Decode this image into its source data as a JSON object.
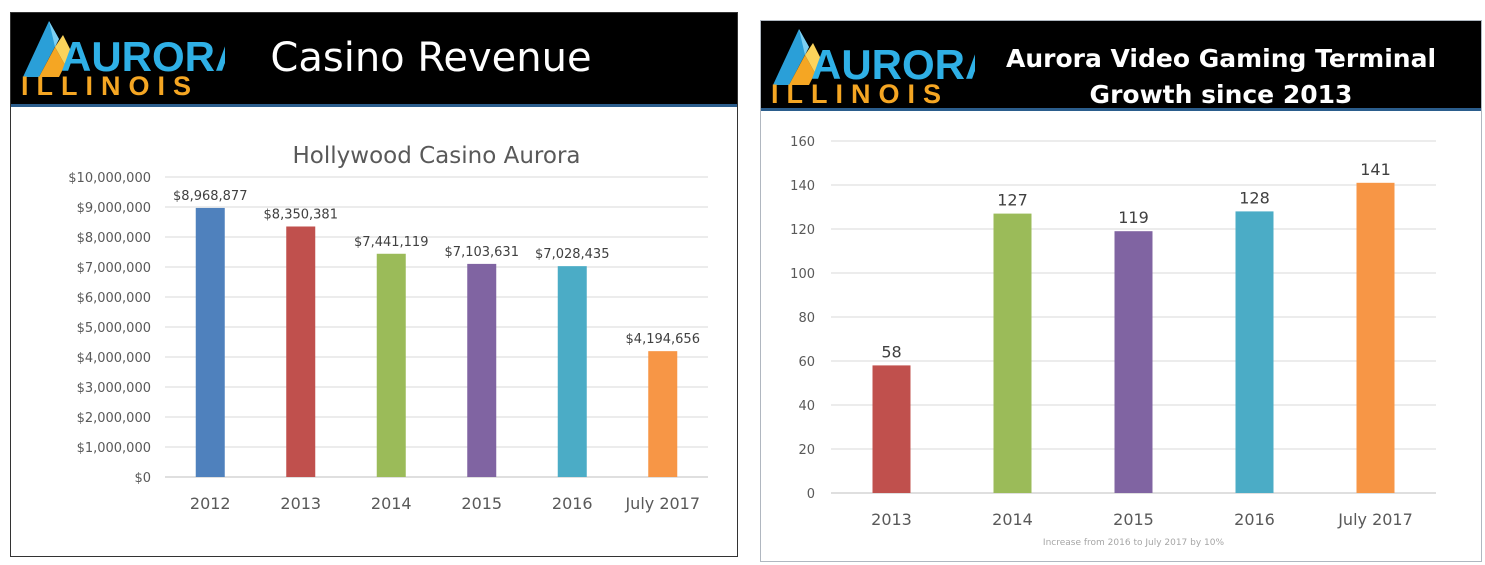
{
  "logo": {
    "line1": "AURORA",
    "line2": "ILLINOIS"
  },
  "panels": [
    {
      "header_title": "Casino Revenue",
      "chart_data": {
        "type": "bar",
        "title": "Hollywood Casino Aurora",
        "categories": [
          "2012",
          "2013",
          "2014",
          "2015",
          "2016",
          "July 2017"
        ],
        "values": [
          8968877,
          8350381,
          7441119,
          7103631,
          7028435,
          4194656
        ],
        "data_labels": [
          "$8,968,877",
          "$8,350,381",
          "$7,441,119",
          "$7,103,631",
          "$7,028,435",
          "$4,194,656"
        ],
        "colors": [
          "#4f81bd",
          "#c0504d",
          "#9bbb59",
          "#8064a2",
          "#4bacc6",
          "#f79646"
        ],
        "ylim": [
          0,
          10000000
        ],
        "yticks": [
          0,
          1000000,
          2000000,
          3000000,
          4000000,
          5000000,
          6000000,
          7000000,
          8000000,
          9000000,
          10000000
        ],
        "ytick_labels": [
          "$0",
          "$1,000,000",
          "$2,000,000",
          "$3,000,000",
          "$4,000,000",
          "$5,000,000",
          "$6,000,000",
          "$7,000,000",
          "$8,000,000",
          "$9,000,000",
          "$10,000,000"
        ],
        "grid": true,
        "xlabel": "",
        "ylabel": ""
      }
    },
    {
      "header_title_line1": "Aurora Video Gaming Terminal",
      "header_title_line2": "Growth since 2013",
      "chart_data": {
        "type": "bar",
        "title": "",
        "categories": [
          "2013",
          "2014",
          "2015",
          "2016",
          "July 2017"
        ],
        "values": [
          58,
          127,
          119,
          128,
          141
        ],
        "data_labels": [
          "58",
          "127",
          "119",
          "128",
          "141"
        ],
        "colors": [
          "#c0504d",
          "#9bbb59",
          "#8064a2",
          "#4bacc6",
          "#f79646"
        ],
        "ylim": [
          0,
          160
        ],
        "yticks": [
          0,
          20,
          40,
          60,
          80,
          100,
          120,
          140,
          160
        ],
        "ytick_labels": [
          "0",
          "20",
          "40",
          "60",
          "80",
          "100",
          "120",
          "140",
          "160"
        ],
        "grid": true,
        "xlabel": "Increase from 2016 to July 2017 by 10%",
        "ylabel": ""
      }
    }
  ]
}
